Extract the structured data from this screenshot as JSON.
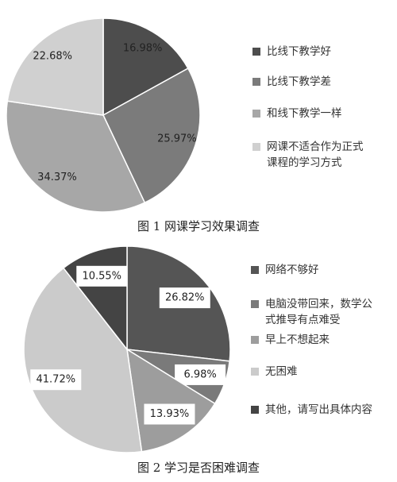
{
  "chart_data": [
    {
      "type": "pie",
      "title": "图 1  网课学习效果调查",
      "categories": [
        "比线下教学好",
        "比线下教学差",
        "和线下教学一样",
        "网课不适合作为正式课程的学习方式"
      ],
      "values": [
        16.98,
        25.97,
        34.37,
        22.68
      ],
      "value_labels": [
        "16.98%",
        "25.97%",
        "34.37%",
        "22.68%"
      ],
      "colors": [
        "#4d4d4d",
        "#7b7b7b",
        "#a7a7a7",
        "#d0d0d0"
      ]
    },
    {
      "type": "pie",
      "title": "图 2  学习是否困难调查",
      "categories": [
        "网络不够好",
        "电脑没带回来，数学公式推导有点难受",
        "早上不想起来",
        "无困难",
        "其他，请写出具体内容"
      ],
      "values": [
        26.82,
        6.98,
        13.93,
        41.72,
        10.55
      ],
      "value_labels": [
        "26.82%",
        "6.98%",
        "13.93%",
        "41.72%",
        "10.55%"
      ],
      "colors": [
        "#555555",
        "#7a7a7a",
        "#9d9d9d",
        "#cbcbcb",
        "#444444"
      ]
    }
  ]
}
